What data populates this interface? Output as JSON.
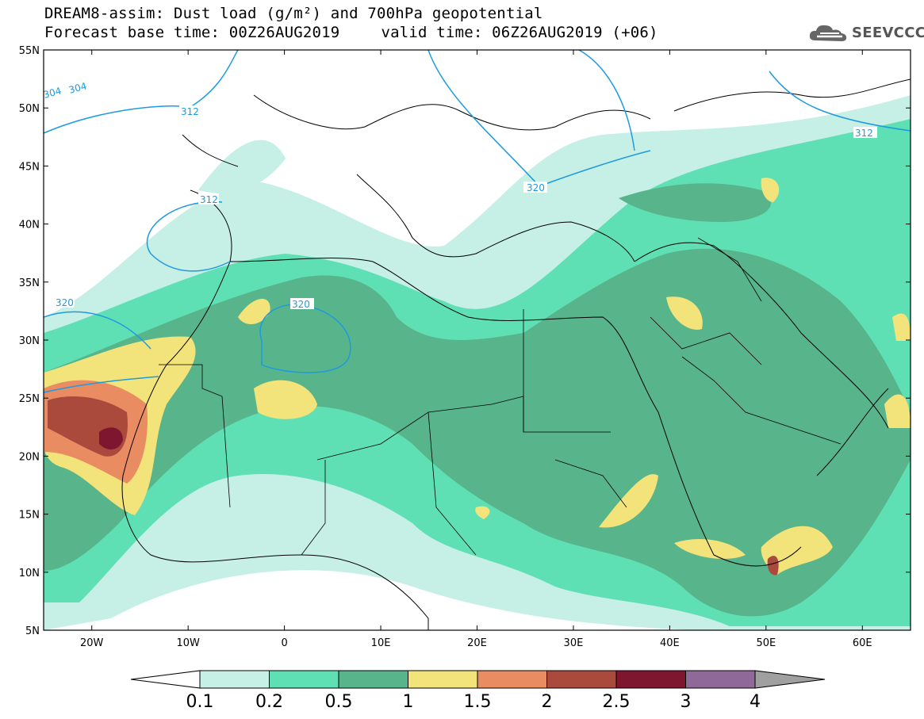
{
  "title": {
    "line1": "DREAM8-assim: Dust load (g/m²) and 700hPa geopotential",
    "line2_base": "Forecast base time: 00Z26AUG2019",
    "line2_valid": "valid time: 06Z26AUG2019 (+06)"
  },
  "logo": {
    "text": "SEEVCCC",
    "icon": "cloud-logo-icon"
  },
  "axes": {
    "lat_labels": [
      "55N",
      "50N",
      "45N",
      "40N",
      "35N",
      "30N",
      "25N",
      "20N",
      "15N",
      "10N",
      "5N"
    ],
    "lon_labels": [
      "20W",
      "10W",
      "0",
      "10E",
      "20E",
      "30E",
      "40E",
      "50E",
      "60E"
    ],
    "lat_values": [
      55,
      50,
      45,
      40,
      35,
      30,
      25,
      20,
      15,
      10,
      5
    ],
    "lon_values": [
      -20,
      -10,
      0,
      10,
      20,
      30,
      40,
      50,
      60
    ],
    "lon_range": [
      -25,
      65
    ],
    "lat_range": [
      5,
      55
    ]
  },
  "contours": {
    "labels": [
      "304",
      "304",
      "312",
      "312",
      "312",
      "320",
      "320",
      "320",
      "320"
    ]
  },
  "colorbar": {
    "labels": [
      "0.1",
      "0.2",
      "0.5",
      "1",
      "1.5",
      "2",
      "2.5",
      "3",
      "4"
    ],
    "colors": [
      "#c6efe6",
      "#5fdfb4",
      "#57b48b",
      "#f2e37a",
      "#e98c62",
      "#aa4a3d",
      "#7e1630",
      "#8f6a98"
    ],
    "under_color": "#ffffff",
    "over_color": "#a0a0a0"
  },
  "colors": {
    "contour": "#1e9be0",
    "border": "#000000"
  }
}
